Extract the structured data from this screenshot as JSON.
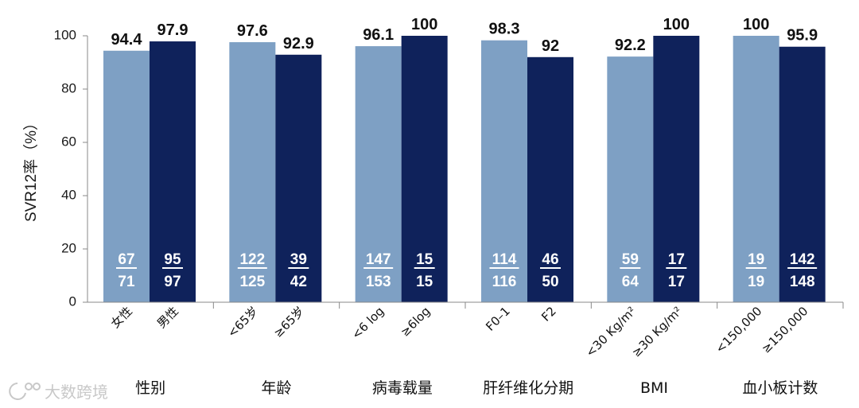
{
  "chart_data": {
    "type": "bar",
    "ylabel": "SVR12率（%）",
    "ylim": [
      0,
      100
    ],
    "yticks": [
      0,
      20,
      40,
      60,
      80,
      100
    ],
    "grid": false,
    "colors": {
      "light": "#7ea0c4",
      "dark": "#0f225b"
    },
    "groups": [
      {
        "name": "性别",
        "bars": [
          {
            "label": "女性",
            "value": 94.4,
            "value_label": "94.4",
            "numerator": "67",
            "denominator": "71",
            "shade": "light"
          },
          {
            "label": "男性",
            "value": 97.9,
            "value_label": "97.9",
            "numerator": "95",
            "denominator": "97",
            "shade": "dark"
          }
        ]
      },
      {
        "name": "年龄",
        "bars": [
          {
            "label": "<65岁",
            "value": 97.6,
            "value_label": "97.6",
            "numerator": "122",
            "denominator": "125",
            "shade": "light"
          },
          {
            "label": "≥65岁",
            "value": 92.9,
            "value_label": "92.9",
            "numerator": "39",
            "denominator": "42",
            "shade": "dark"
          }
        ]
      },
      {
        "name": "病毒载量",
        "bars": [
          {
            "label": "<6 log",
            "value": 96.1,
            "value_label": "96.1",
            "numerator": "147",
            "denominator": "153",
            "shade": "light"
          },
          {
            "label": "≥6log",
            "value": 100,
            "value_label": "100",
            "numerator": "15",
            "denominator": "15",
            "shade": "dark"
          }
        ]
      },
      {
        "name": "肝纤维化分期",
        "bars": [
          {
            "label": "F0–1",
            "value": 98.3,
            "value_label": "98.3",
            "numerator": "114",
            "denominator": "116",
            "shade": "light"
          },
          {
            "label": "F2",
            "value": 92,
            "value_label": "92",
            "numerator": "46",
            "denominator": "50",
            "shade": "dark"
          }
        ]
      },
      {
        "name": "BMI",
        "bars": [
          {
            "label": "<30 Kg/m²",
            "value": 92.2,
            "value_label": "92.2",
            "numerator": "59",
            "denominator": "64",
            "shade": "light"
          },
          {
            "label": "≥30 Kg/m²",
            "value": 100,
            "value_label": "100",
            "numerator": "17",
            "denominator": "17",
            "shade": "dark"
          }
        ]
      },
      {
        "name": "血小板计数",
        "bars": [
          {
            "label": "<150,000",
            "value": 100,
            "value_label": "100",
            "numerator": "19",
            "denominator": "19",
            "shade": "light"
          },
          {
            "label": "≥150,000",
            "value": 95.9,
            "value_label": "95.9",
            "numerator": "142",
            "denominator": "148",
            "shade": "dark"
          }
        ]
      }
    ]
  },
  "watermark": {
    "text": "大数跨境"
  }
}
